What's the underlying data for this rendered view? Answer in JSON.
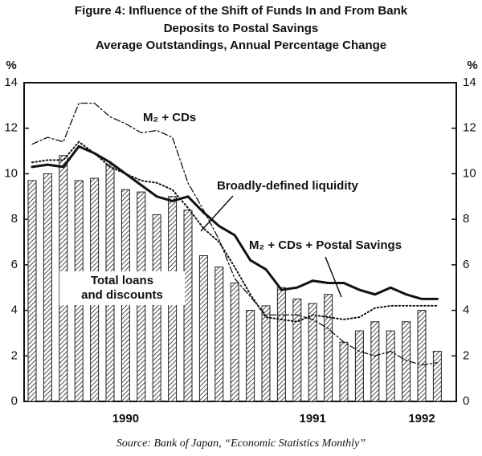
{
  "chart_data": {
    "type": "bar+line",
    "title": [
      "Figure 4: Influence of the Shift of Funds In and From Bank",
      "Deposits to Postal Savings",
      "Average Outstandings,  Annual Percentage Change"
    ],
    "y_label": "%",
    "y2_label": "%",
    "source": "Source: Bank of Japan, “Economic Statistics Monthly”",
    "categories": [
      null,
      null,
      null,
      null,
      null,
      null,
      "1990",
      null,
      null,
      null,
      null,
      null,
      null,
      null,
      null,
      null,
      null,
      null,
      "1991",
      null,
      null,
      null,
      null,
      null,
      null,
      "1992",
      null
    ],
    "ylim": [
      0,
      14
    ],
    "yticks": [
      0,
      2,
      4,
      6,
      8,
      10,
      12,
      14
    ],
    "y2lim": [
      0,
      14
    ],
    "y2ticks": [
      0,
      2,
      4,
      6,
      8,
      10,
      12,
      14
    ],
    "bars": {
      "label_lines": [
        "Total loans",
        "and discounts"
      ],
      "values": [
        9.7,
        10.0,
        10.8,
        9.7,
        9.8,
        10.4,
        9.3,
        9.2,
        8.2,
        9.0,
        8.4,
        6.4,
        5.9,
        5.2,
        4.0,
        4.2,
        5.0,
        4.5,
        4.3,
        4.7,
        2.6,
        3.1,
        3.5,
        3.1,
        3.5,
        4.0,
        2.2
      ]
    },
    "series": [
      {
        "name": "Broadly-defined liquidity",
        "style": "solid",
        "color": "#111",
        "values": [
          10.3,
          10.4,
          10.3,
          11.2,
          10.9,
          10.5,
          10.0,
          9.5,
          9.0,
          8.8,
          9.0,
          8.3,
          7.7,
          7.3,
          6.2,
          5.8,
          4.9,
          5.0,
          5.3,
          5.2,
          5.2,
          4.9,
          4.7,
          5.0,
          4.7,
          4.5,
          4.5
        ]
      },
      {
        "name": "M₂ + CDs",
        "style": "dashdot",
        "color": "#111",
        "values": [
          11.3,
          11.6,
          11.4,
          13.1,
          13.1,
          12.5,
          12.2,
          11.8,
          11.9,
          11.6,
          9.6,
          8.4,
          7.1,
          5.4,
          4.6,
          3.8,
          3.8,
          3.8,
          3.6,
          3.2,
          2.6,
          2.2,
          2.0,
          2.2,
          1.8,
          1.6,
          1.7
        ]
      },
      {
        "name": "M₂ + CDs + Postal Savings",
        "style": "dotted",
        "color": "#111",
        "values": [
          10.5,
          10.6,
          10.6,
          11.4,
          10.9,
          10.3,
          10.0,
          9.7,
          9.6,
          9.3,
          8.5,
          7.6,
          7.0,
          5.9,
          4.7,
          3.7,
          3.6,
          3.5,
          3.8,
          3.7,
          3.6,
          3.7,
          4.1,
          4.2,
          4.2,
          4.2,
          4.2
        ]
      }
    ]
  }
}
